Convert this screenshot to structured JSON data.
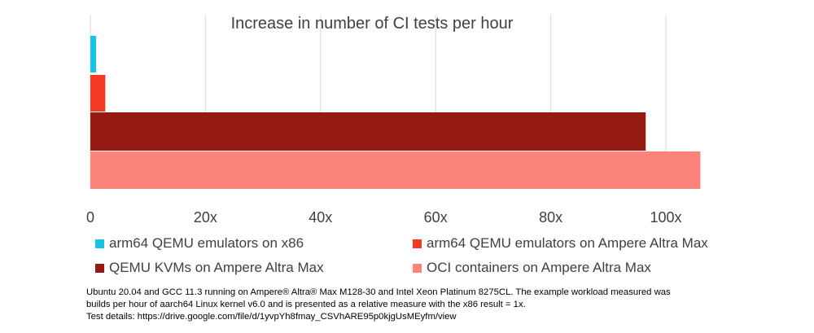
{
  "chart_data": {
    "type": "bar",
    "orientation": "horizontal",
    "title": "Increase in number of CI tests per hour",
    "categories": [
      "arm64 QEMU emulators on x86",
      "arm64 QEMU emulators on Ampere Altra Max",
      "QEMU KVMs on Ampere Altra Max",
      "OCI containers on Ampere Altra Max"
    ],
    "series": [
      {
        "name": "arm64 QEMU emulators on x86",
        "value": 1,
        "color": "#19c3e6"
      },
      {
        "name": "arm64 QEMU emulators on Ampere Altra Max",
        "value": 2.6,
        "color": "#f23a24"
      },
      {
        "name": "QEMU KVMs on Ampere Altra Max",
        "value": 96.5,
        "color": "#951a12"
      },
      {
        "name": "OCI containers on Ampere Altra Max",
        "value": 106,
        "color": "#fd847c"
      }
    ],
    "xlim": [
      0,
      110
    ],
    "xticks": [
      0,
      20,
      40,
      60,
      80,
      100
    ],
    "xtick_labels": [
      "0",
      "20x",
      "40x",
      "60x",
      "80x",
      "100x"
    ],
    "xlabel": "",
    "ylabel": "",
    "grid": "vertical",
    "legend_position": "bottom"
  },
  "footnote": {
    "line1": "Ubuntu 20.04 and GCC 11.3 running on Ampere® Altra® Max M128-30 and Intel Xeon Platinum 8275CL. The example workload measured was",
    "line2": "builds per hour of aarch64 Linux kernel v6.0 and is presented as a relative measure with the x86 result = 1x.",
    "line3": "Test details: https://drive.google.com/file/d/1yvpYh8fmay_CSVhARE95p0kjgUsMEyfm/view"
  },
  "colors": {
    "grid": "#d9d9d9",
    "axis_text": "#404040"
  }
}
